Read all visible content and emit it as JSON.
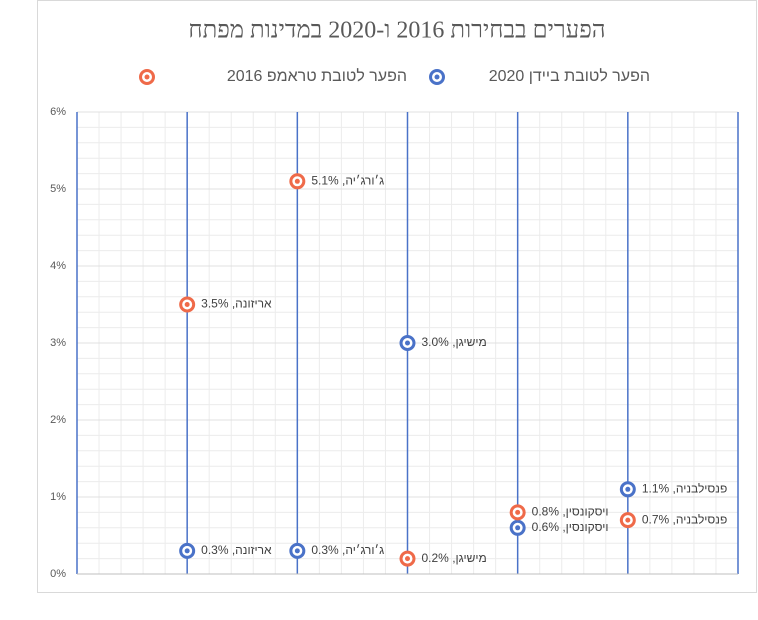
{
  "chart_data": {
    "type": "scatter",
    "title": "הפערים בבחירות 2016 ו-2020 במדינות מפתח",
    "x": [
      1,
      2,
      3,
      4,
      5
    ],
    "xlim": [
      0,
      6
    ],
    "xticks": [
      1,
      2,
      3,
      4,
      5,
      6
    ],
    "ylim": [
      0,
      6
    ],
    "yticks": [
      {
        "value": 0,
        "label": "0%"
      },
      {
        "value": 1,
        "label": "1%"
      },
      {
        "value": 2,
        "label": "2%"
      },
      {
        "value": 3,
        "label": "3%"
      },
      {
        "value": 4,
        "label": "4%"
      },
      {
        "value": 5,
        "label": "5%"
      },
      {
        "value": 6,
        "label": "6%"
      }
    ],
    "grid": true,
    "legend": "top",
    "series": [
      {
        "name": "הפער לטובת ביידן 2020",
        "color": "#4a72c8",
        "values": [
          0.3,
          0.3,
          3.0,
          0.6,
          1.1
        ],
        "value_labels": [
          "אריזונה, 0.3%",
          "ג׳ורג׳יה, 0.3%",
          "מישיגן, 3.0%",
          "ויסקונסין, 0.6%",
          "פנסילבניה, 1.1%"
        ]
      },
      {
        "name": "הפער לטובת טראמפ 2016",
        "color": "#ef6a49",
        "values": [
          3.5,
          5.1,
          0.2,
          0.8,
          0.7
        ],
        "value_labels": [
          "אריזונה, 3.5%",
          "ג׳ורג׳יה, 5.1%",
          "מישיגן, 0.2%",
          "ויסקונסין, 0.8%",
          "פנסילבניה, 0.7%"
        ]
      }
    ]
  }
}
